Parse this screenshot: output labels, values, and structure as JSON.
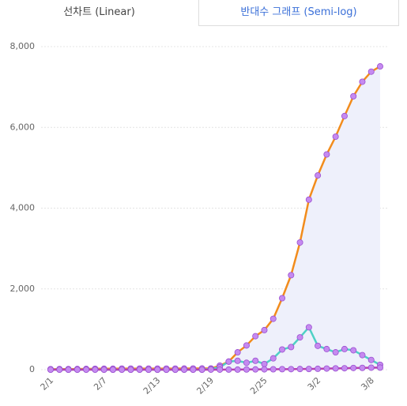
{
  "tabs": [
    "선차트 (Linear)",
    "반대수 그래프 (Semi-log)"
  ],
  "chart_data": {
    "type": "line",
    "categories": [
      "2/1",
      null,
      null,
      null,
      null,
      null,
      "2/7",
      null,
      null,
      null,
      null,
      null,
      "2/13",
      null,
      null,
      null,
      null,
      null,
      "2/19",
      null,
      null,
      null,
      null,
      null,
      "2/25",
      null,
      null,
      null,
      null,
      null,
      "3/2",
      null,
      null,
      null,
      null,
      null,
      "3/8",
      null
    ],
    "series": [
      {
        "color": "#f28c1c",
        "values": [
          12,
          15,
          15,
          16,
          19,
          23,
          24,
          24,
          27,
          27,
          28,
          28,
          28,
          28,
          28,
          29,
          30,
          31,
          30,
          100,
          200,
          430,
          600,
          830,
          980,
          1260,
          1770,
          2340,
          3150,
          4210,
          4810,
          5330,
          5770,
          6280,
          6770,
          7130,
          7380,
          7510
        ]
      },
      {
        "color": "#4fd1c5",
        "values": [
          1,
          3,
          0,
          1,
          3,
          4,
          1,
          0,
          3,
          0,
          1,
          0,
          0,
          0,
          0,
          1,
          1,
          1,
          20,
          60,
          200,
          220,
          170,
          220,
          140,
          280,
          500,
          560,
          800,
          1050,
          590,
          510,
          430,
          510,
          480,
          360,
          240,
          120
        ]
      },
      {
        "color": "#b83fae",
        "values": [
          0,
          0,
          0,
          0,
          0,
          0,
          0,
          0,
          0,
          0,
          0,
          0,
          0,
          0,
          0,
          0,
          0,
          0,
          1,
          1,
          2,
          2,
          5,
          7,
          8,
          10,
          12,
          13,
          16,
          17,
          21,
          28,
          32,
          35,
          42,
          44,
          50,
          51
        ]
      }
    ],
    "marker_color": "#c58af0",
    "area_color": "#eef0fb",
    "ylim": [
      0,
      8000
    ],
    "yticks": [
      0,
      {
        "value": 2000,
        "label": "2,000"
      },
      {
        "value": 4000,
        "label": "4,000"
      },
      {
        "value": 6000,
        "label": "6,000"
      },
      {
        "value": 8000,
        "label": "8,000"
      }
    ],
    "grid": true
  }
}
